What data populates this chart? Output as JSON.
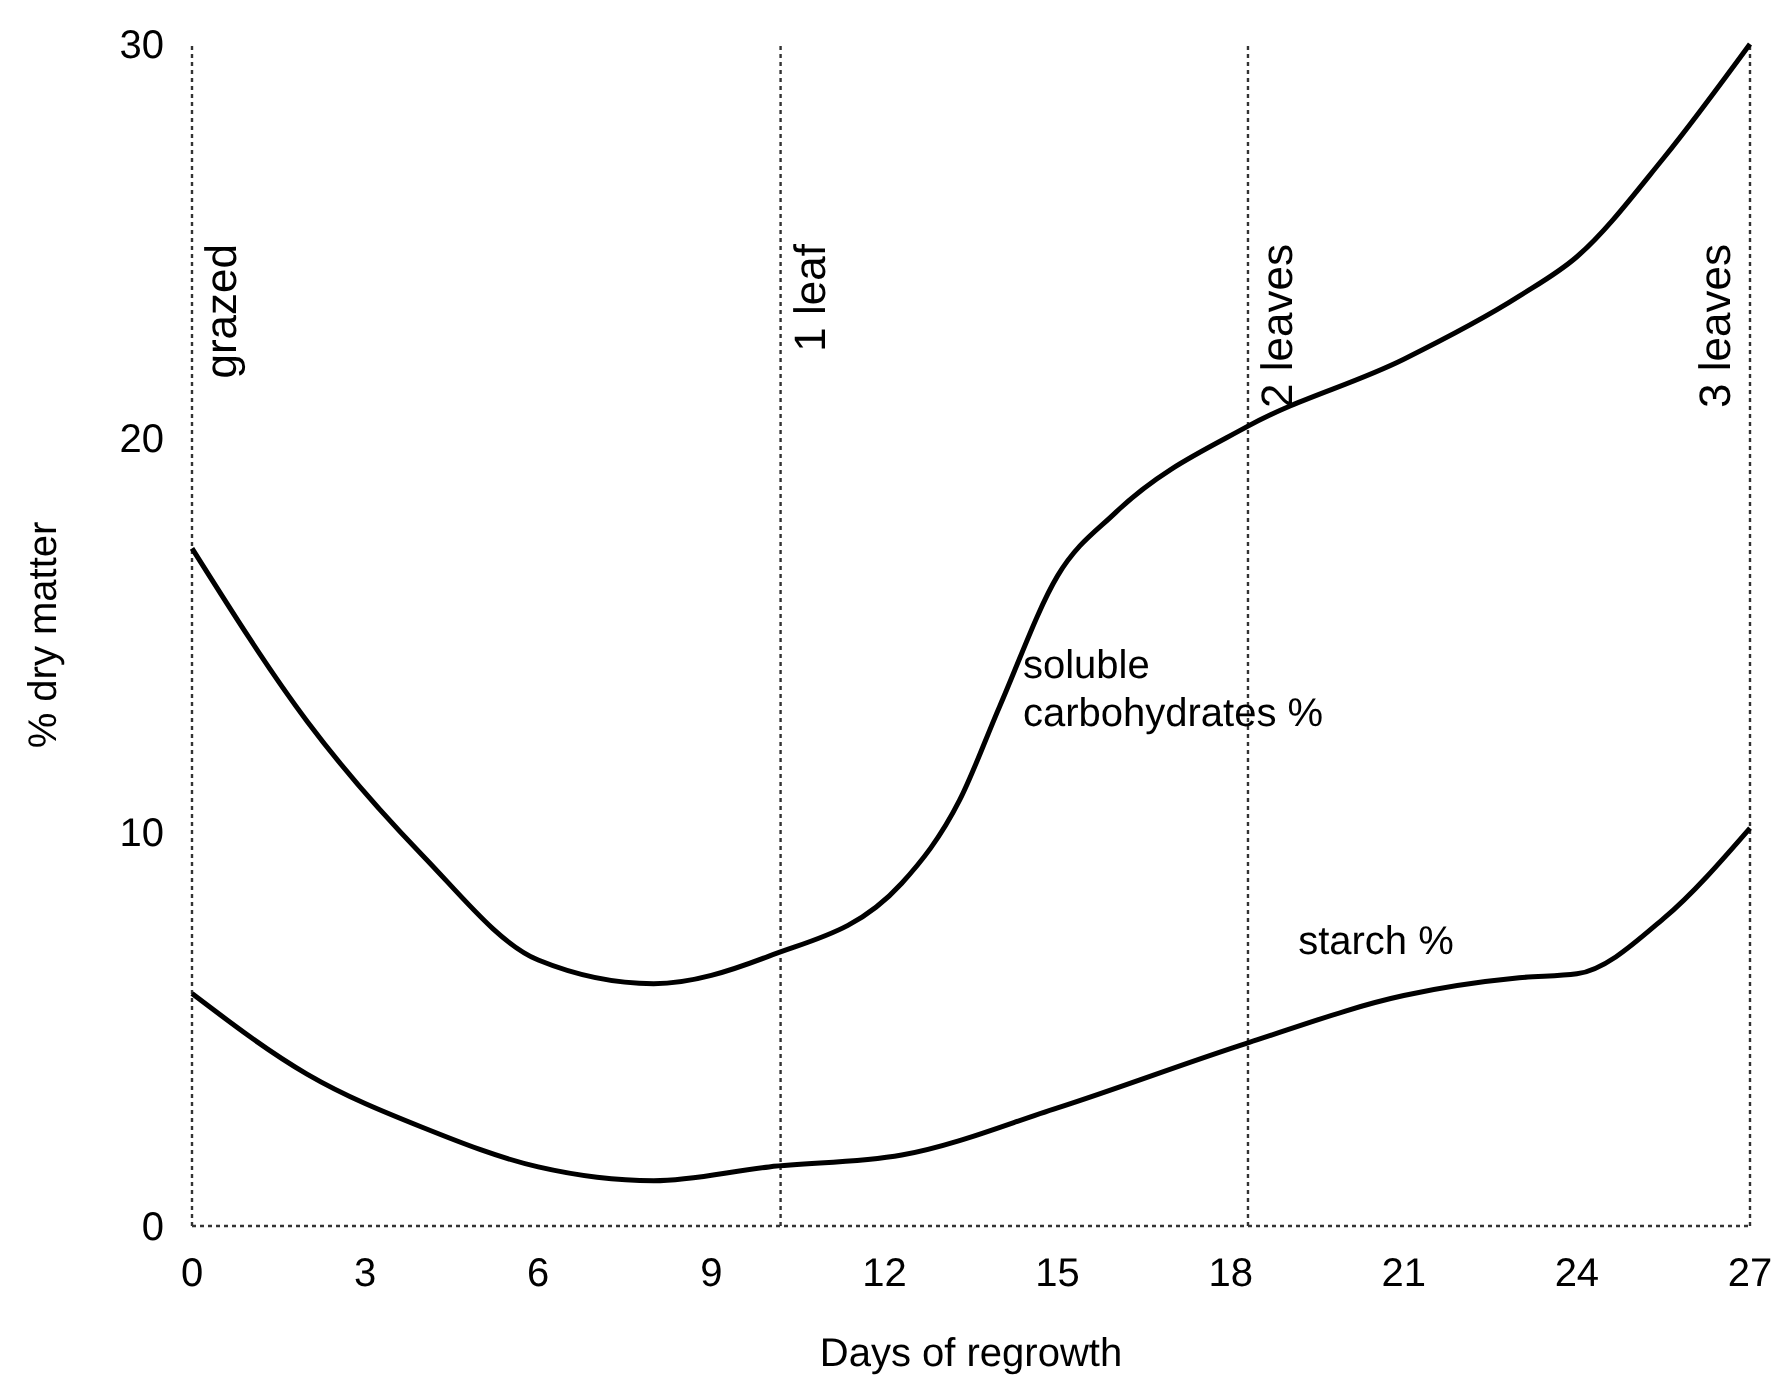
{
  "chart_data": {
    "type": "line",
    "xlabel": "Days of regrowth",
    "ylabel": "% dry matter",
    "xlim": [
      0,
      27
    ],
    "ylim": [
      0,
      30
    ],
    "xticks": [
      0,
      3,
      6,
      9,
      12,
      15,
      18,
      21,
      24,
      27
    ],
    "yticks": [
      0,
      10,
      20,
      30
    ],
    "grid": false,
    "marker": "none",
    "line_style": "solid",
    "series": [
      {
        "color": "#000000",
        "x": [
          0,
          2,
          4,
          6,
          8,
          10,
          12.3,
          13.3,
          14,
          15,
          16,
          18.3,
          21,
          23,
          24,
          25.5,
          27
        ],
        "values": [
          17.2,
          12.8,
          9.4,
          6.75,
          6.15,
          6.85,
          8.7,
          10.8,
          13.2,
          16.5,
          18.1,
          20.3,
          22,
          23.6,
          24.6,
          27.1,
          30
        ]
      },
      {
        "color": "#000000",
        "x": [
          0,
          2,
          4,
          6,
          8,
          10,
          12.3,
          15,
          18.3,
          21,
          23,
          24,
          25.5,
          27
        ],
        "values": [
          5.9,
          3.85,
          2.5,
          1.5,
          1.15,
          1.5,
          1.8,
          3,
          4.65,
          5.85,
          6.3,
          6.4,
          7.8,
          10.1
        ]
      }
    ],
    "ref_lines": [
      {
        "axis": "x",
        "value": 0,
        "label": "grazed",
        "line_style": "dotted",
        "color": "#333333"
      },
      {
        "axis": "x",
        "value": 10.2,
        "label": "1 leaf",
        "line_style": "dotted",
        "color": "#333333"
      },
      {
        "axis": "x",
        "value": 18.3,
        "label": "2 leaves",
        "line_style": "dotted",
        "color": "#333333"
      },
      {
        "axis": "x",
        "value": 27,
        "label": "3 leaves",
        "line_style": "dotted",
        "color": "#333333"
      }
    ],
    "annotations": [
      {
        "text": "soluble\ncarbohydrates %",
        "x": 14.4,
        "y": 13.9
      },
      "starch %"
    ]
  }
}
